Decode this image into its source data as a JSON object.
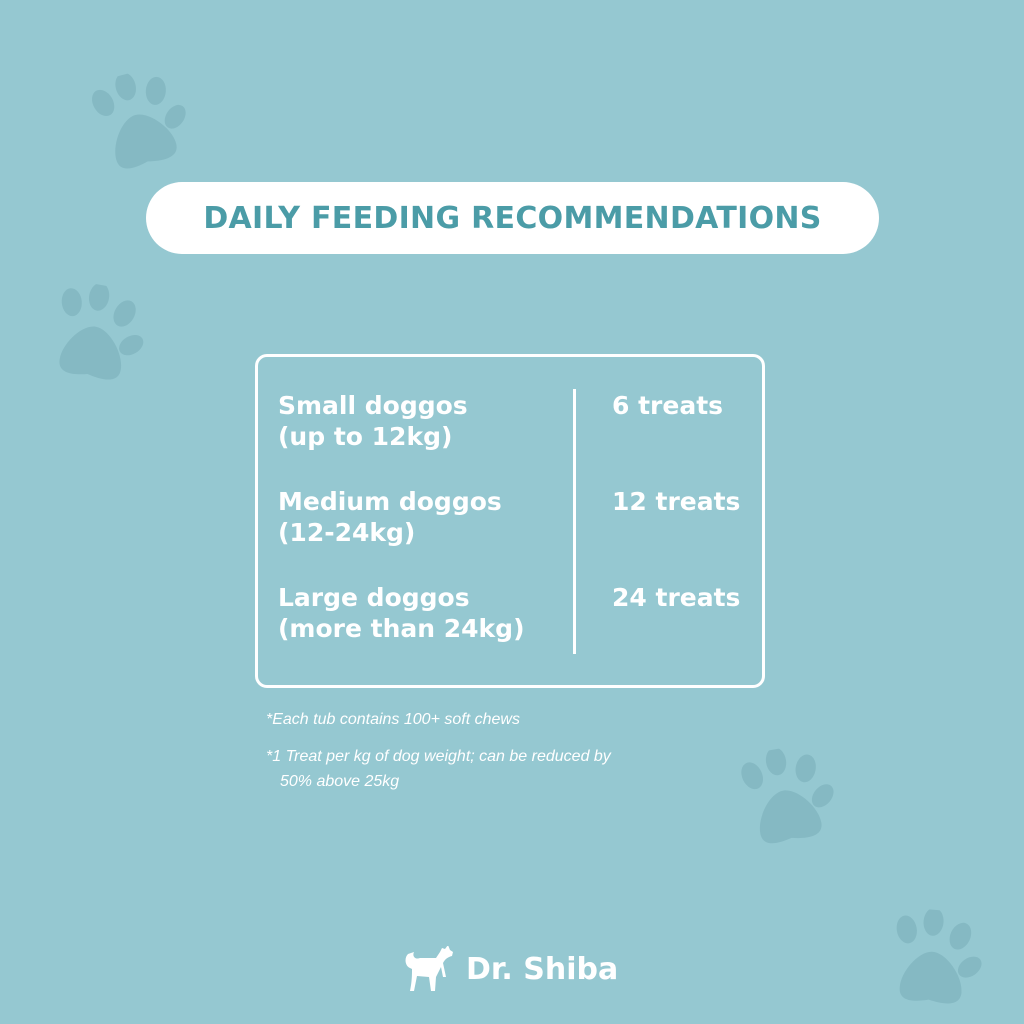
{
  "title": "DAILY FEEDING RECOMMENDATIONS",
  "rows": [
    {
      "size": "Small doggos",
      "range": "(up to 12kg)",
      "amount": "6 treats"
    },
    {
      "size": "Medium doggos",
      "range": "(12-24kg)",
      "amount": "12 treats"
    },
    {
      "size": "Large doggos",
      "range": "(more than 24kg)",
      "amount": "24 treats"
    }
  ],
  "notes": [
    "*Each tub contains 100+ soft chews",
    "*1 Treat per kg of dog weight; can be reduced by",
    "50% above 25kg"
  ],
  "brand": {
    "name": "Dr. Shiba",
    "logo_icon": "shiba-dog-icon"
  },
  "colors": {
    "background": "#95c8d1",
    "title_text": "#4b9ca7",
    "paw": "#85b9c3",
    "text": "#ffffff"
  }
}
